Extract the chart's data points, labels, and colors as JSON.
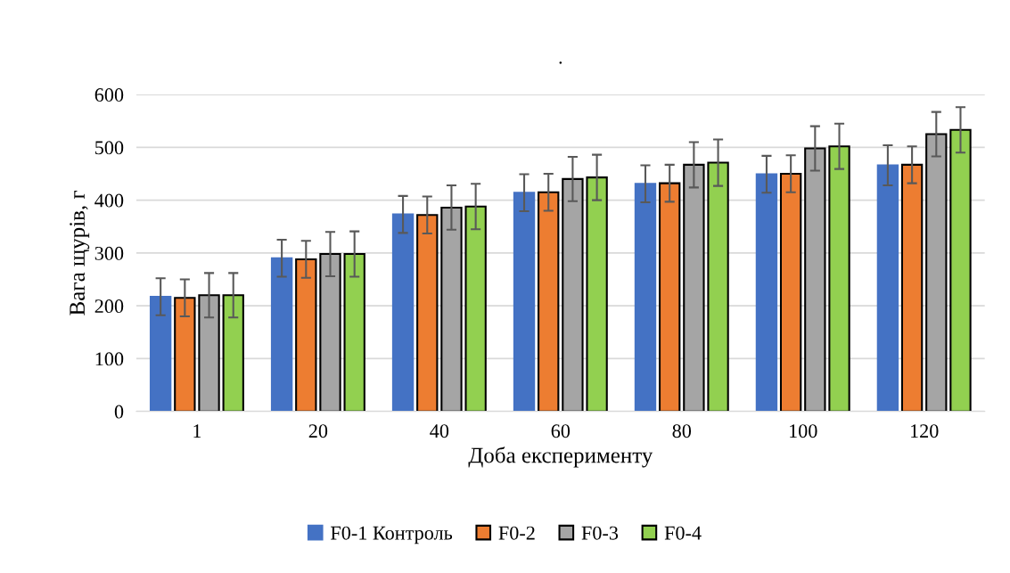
{
  "chart_data": {
    "type": "bar",
    "title": ".",
    "xlabel": "Доба експерименту",
    "ylabel": "Вага щурів, г",
    "categories": [
      "1",
      "20",
      "40",
      "60",
      "80",
      "100",
      "120"
    ],
    "series": [
      {
        "name": "F0-1 Контроль",
        "color": "#4472c4",
        "values": [
          217,
          290,
          373,
          414,
          431,
          449,
          466
        ],
        "errors": [
          35,
          35,
          35,
          35,
          35,
          35,
          38
        ]
      },
      {
        "name": "F0-2",
        "color": "#ed7d31",
        "values": [
          215,
          288,
          372,
          415,
          432,
          450,
          467
        ],
        "errors": [
          35,
          35,
          35,
          35,
          35,
          35,
          35
        ]
      },
      {
        "name": "F0-3",
        "color": "#a5a5a5",
        "values": [
          220,
          298,
          386,
          440,
          467,
          498,
          525
        ],
        "errors": [
          42,
          42,
          42,
          42,
          43,
          42,
          42
        ]
      },
      {
        "name": "F0-4",
        "color": "#92d050",
        "values": [
          220,
          298,
          388,
          443,
          471,
          502,
          533
        ],
        "errors": [
          42,
          43,
          43,
          43,
          44,
          43,
          43
        ]
      }
    ],
    "ylim": [
      0,
      600
    ],
    "yticks": [
      0,
      100,
      200,
      300,
      400,
      500,
      600
    ],
    "grid": "y",
    "legend": "bottom"
  }
}
